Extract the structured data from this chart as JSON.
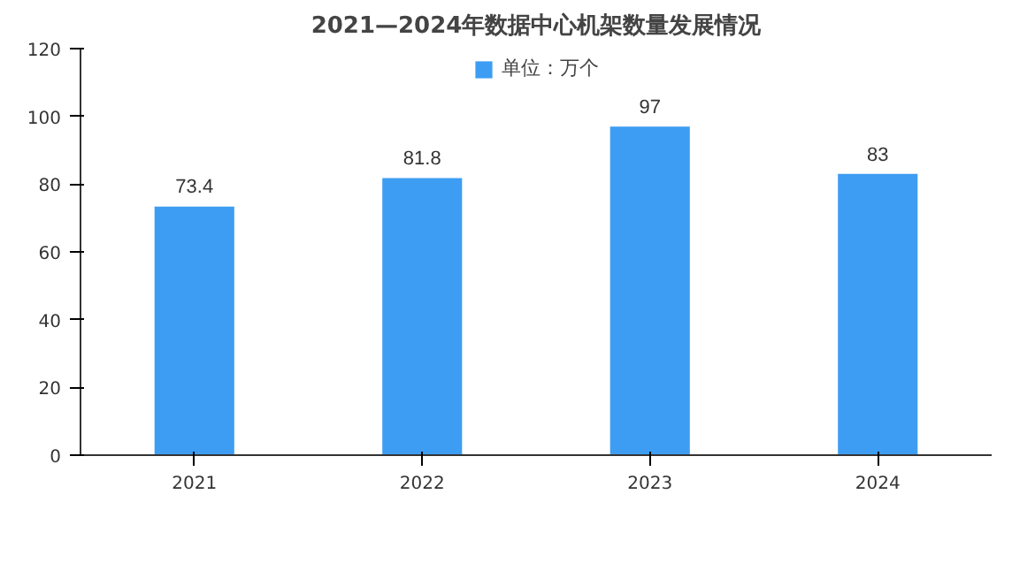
{
  "chart_data": {
    "type": "bar",
    "title": "2021—2024年数据中心机架数量发展情况",
    "categories": [
      "2021",
      "2022",
      "2023",
      "2024"
    ],
    "series": [
      {
        "name": "单位：万个",
        "color": "#3d9df3",
        "values": [
          73.4,
          81.8,
          97,
          83
        ]
      }
    ],
    "value_labels": [
      "73.4",
      "81.8",
      "97",
      "83"
    ],
    "ylim": [
      0,
      120
    ],
    "yticks": [
      0,
      20,
      40,
      60,
      80,
      100,
      120
    ],
    "grid": false,
    "legend": "top"
  }
}
